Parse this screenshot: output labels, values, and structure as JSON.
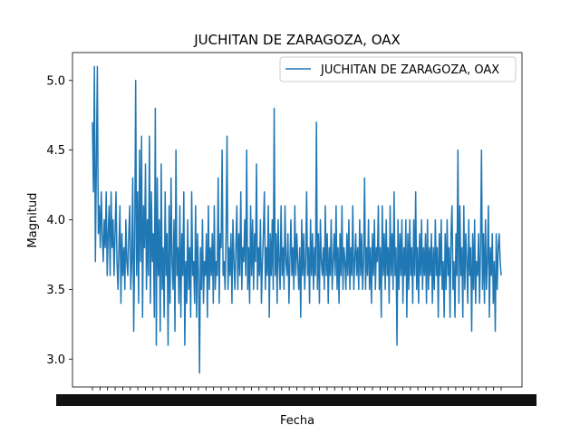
{
  "chart_data": {
    "type": "line",
    "title": "JUCHITAN DE ZARAGOZA, OAX",
    "xlabel": "Fecha",
    "ylabel": "Magnitud",
    "ylim": [
      2.8,
      5.2
    ],
    "yticks": [
      3.0,
      3.5,
      4.0,
      4.5,
      5.0
    ],
    "ytick_labels": [
      "3.0",
      "3.5",
      "4.0",
      "4.5",
      "5.0"
    ],
    "grid": false,
    "legend_position": "top-right",
    "series": [
      {
        "name": "JUCHITAN DE ZARAGOZA, OAX",
        "color": "#1f77b4",
        "values": [
          4.7,
          4.2,
          5.1,
          3.7,
          4.4,
          5.1,
          3.9,
          4.1,
          3.8,
          4.2,
          3.9,
          3.7,
          4.0,
          3.8,
          4.2,
          3.6,
          3.9,
          4.1,
          3.6,
          4.2,
          3.8,
          4.0,
          3.6,
          3.9,
          4.2,
          3.7,
          3.5,
          3.8,
          4.1,
          3.4,
          3.9,
          3.6,
          3.8,
          3.5,
          4.0,
          3.7,
          3.6,
          3.9,
          4.1,
          3.5,
          3.7,
          4.3,
          3.2,
          3.8,
          5.0,
          3.6,
          4.2,
          3.4,
          4.5,
          3.7,
          4.6,
          3.3,
          4.1,
          3.8,
          4.4,
          3.5,
          4.0,
          3.6,
          4.6,
          3.4,
          4.2,
          3.7,
          3.9,
          3.3,
          4.8,
          3.1,
          4.3,
          3.6,
          4.0,
          3.2,
          4.4,
          3.5,
          3.8,
          3.3,
          4.2,
          3.6,
          3.9,
          3.1,
          4.1,
          3.4,
          4.3,
          3.7,
          3.5,
          4.0,
          3.2,
          4.5,
          3.6,
          3.8,
          3.4,
          4.1,
          3.3,
          3.9,
          3.6,
          4.2,
          3.1,
          3.7,
          3.4,
          4.0,
          3.5,
          3.8,
          3.3,
          4.2,
          3.6,
          3.7,
          3.4,
          4.1,
          3.3,
          3.9,
          3.6,
          2.9,
          3.8,
          3.5,
          4.0,
          3.4,
          3.7,
          3.6,
          3.9,
          3.3,
          4.1,
          3.5,
          3.8,
          3.6,
          3.9,
          3.4,
          4.1,
          3.5,
          3.7,
          3.6,
          4.3,
          3.4,
          3.9,
          3.8,
          4.5,
          3.6,
          3.7,
          3.5,
          3.9,
          4.6,
          3.5,
          3.8,
          3.6,
          3.9,
          3.4,
          4.0,
          3.7,
          3.5,
          3.8,
          4.1,
          3.5,
          3.9,
          3.6,
          4.2,
          3.5,
          3.8,
          3.7,
          4.0,
          3.6,
          4.5,
          3.5,
          3.8,
          3.4,
          4.1,
          3.6,
          4.0,
          3.5,
          3.9,
          3.7,
          4.4,
          3.5,
          3.8,
          3.6,
          4.0,
          3.4,
          3.7,
          3.9,
          4.2,
          3.5,
          3.8,
          3.6,
          4.1,
          3.3,
          3.9,
          3.6,
          4.0,
          3.5,
          4.8,
          3.6,
          3.9,
          3.4,
          4.0,
          3.7,
          3.5,
          4.1,
          3.6,
          3.8,
          3.5,
          4.1,
          3.7,
          3.6,
          3.9,
          3.4,
          3.7,
          4.0,
          3.6,
          3.8,
          3.5,
          4.1,
          3.6,
          3.9,
          3.7,
          3.5,
          3.8,
          3.3,
          4.0,
          3.6,
          3.9,
          3.5,
          3.7,
          4.2,
          3.6,
          3.8,
          3.4,
          4.0,
          3.6,
          3.9,
          3.5,
          3.8,
          3.6,
          4.7,
          3.5,
          3.9,
          3.4,
          4.0,
          3.7,
          3.6,
          3.8,
          3.5,
          4.1,
          3.6,
          3.9,
          3.4,
          3.8,
          3.6,
          4.0,
          3.5,
          3.7,
          3.9,
          3.6,
          4.1,
          3.5,
          3.8,
          3.4,
          3.9,
          3.6,
          4.1,
          3.5,
          3.8,
          3.7,
          3.5,
          3.9,
          3.6,
          4.0,
          3.5,
          3.8,
          3.6,
          4.1,
          3.5,
          3.7,
          3.9,
          3.6,
          3.8,
          3.5,
          4.0,
          3.6,
          3.9,
          3.5,
          3.7,
          4.3,
          3.5,
          3.8,
          3.6,
          4.0,
          3.5,
          3.8,
          3.4,
          3.9,
          3.6,
          4.0,
          3.5,
          3.8,
          3.7,
          4.1,
          3.5,
          3.8,
          3.3,
          4.1,
          3.6,
          3.9,
          3.5,
          4.0,
          3.6,
          3.8,
          3.4,
          4.1,
          3.6,
          3.9,
          3.5,
          4.2,
          3.6,
          3.8,
          3.1,
          4.0,
          3.5,
          3.9,
          3.6,
          4.0,
          3.4,
          3.8,
          3.6,
          4.0,
          3.3,
          3.9,
          3.5,
          4.0,
          3.6,
          3.8,
          3.4,
          4.0,
          3.6,
          4.2,
          3.5,
          3.8,
          3.4,
          3.9,
          3.6,
          4.0,
          3.5,
          3.8,
          3.6,
          3.9,
          3.4,
          4.0,
          3.5,
          3.8,
          3.6,
          3.9,
          3.4,
          3.8,
          3.5,
          4.0,
          3.6,
          3.8,
          3.3,
          3.9,
          3.6,
          4.0,
          3.5,
          3.7,
          3.3,
          3.9,
          3.5,
          4.0,
          3.6,
          3.8,
          3.3,
          3.9,
          4.1,
          3.5,
          3.7,
          3.3,
          3.9,
          3.6,
          4.5,
          3.4,
          4.1,
          3.6,
          3.8,
          3.3,
          4.1,
          3.5,
          3.9,
          3.7,
          3.4,
          4.0,
          3.6,
          3.8,
          3.2,
          3.9,
          3.5,
          4.0,
          3.4,
          3.7,
          3.6,
          3.9,
          3.4,
          3.8,
          4.5,
          3.5,
          3.9,
          3.4,
          4.0,
          3.5,
          3.7,
          4.1,
          3.3,
          3.8,
          3.6,
          3.9,
          3.4,
          3.7,
          3.2,
          3.9,
          3.5,
          3.8,
          3.9,
          3.7,
          3.6
        ]
      }
    ]
  },
  "x_tick_count": 55
}
